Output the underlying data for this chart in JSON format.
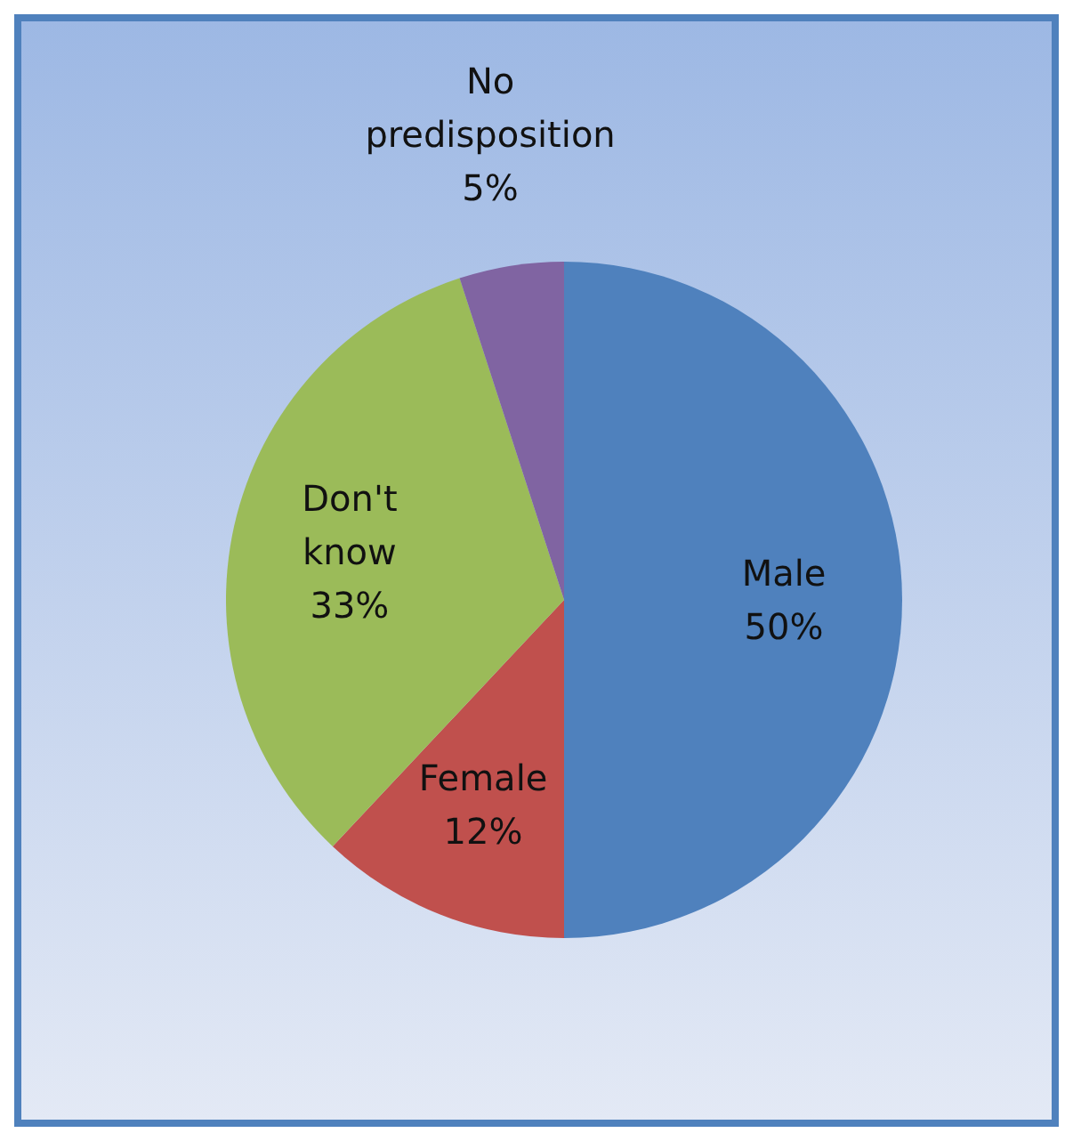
{
  "chart_data": {
    "type": "pie",
    "categories": [
      "Male",
      "Female",
      "Don't know",
      "No predisposition"
    ],
    "values": [
      50,
      12,
      33,
      5
    ],
    "colors": [
      "#4f81bd",
      "#c0504d",
      "#9bbb59",
      "#8064a2"
    ],
    "value_labels": [
      "50%",
      "12%",
      "33%",
      "5%"
    ]
  }
}
